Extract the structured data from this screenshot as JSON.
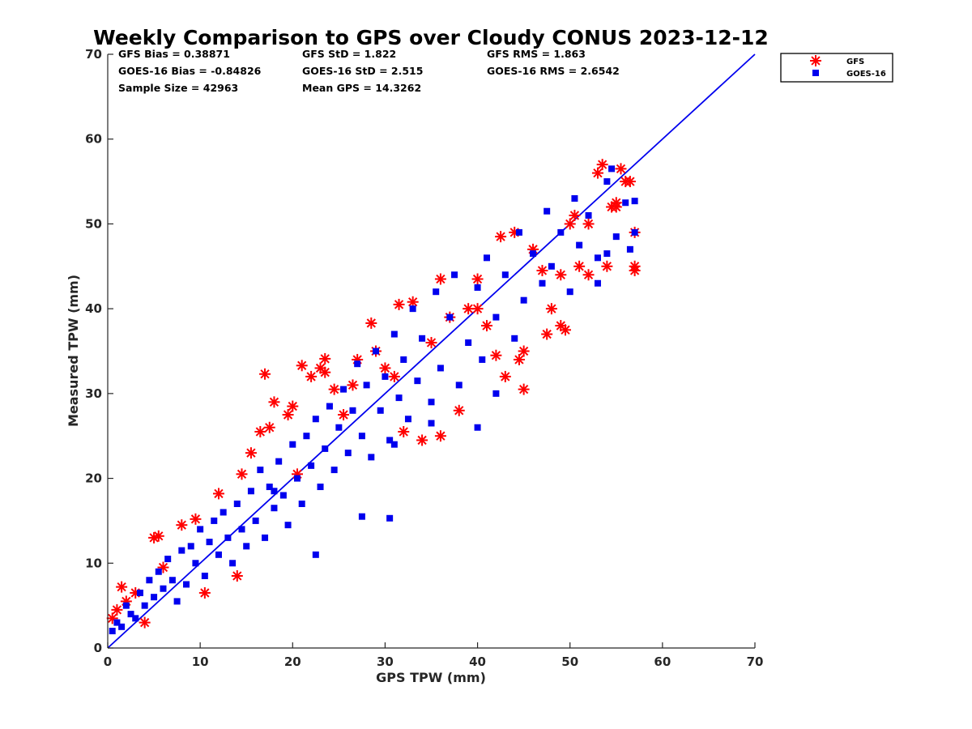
{
  "chart_data": {
    "type": "scatter",
    "title": "Weekly Comparison to GPS over Cloudy CONUS 2023-12-12",
    "xlabel": "GPS TPW (mm)",
    "ylabel": "Measured TPW (mm)",
    "xlim": [
      0,
      70
    ],
    "ylim": [
      0,
      70
    ],
    "xticks": [
      "0",
      "10",
      "20",
      "30",
      "40",
      "50",
      "60",
      "70"
    ],
    "yticks": [
      "0",
      "10",
      "20",
      "30",
      "40",
      "50",
      "60",
      "70"
    ],
    "grid": false,
    "legend_position": "outside top-right",
    "stats": [
      [
        "GFS Bias = 0.38871",
        "GFS StD = 1.822",
        "GFS RMS = 1.863"
      ],
      [
        "GOES-16 Bias = -0.84826",
        "GOES-16 StD = 2.515",
        "GOES-16 RMS = 2.6542"
      ],
      [
        "Sample Size = 42963",
        "Mean GPS = 14.3262",
        ""
      ]
    ],
    "reference_line": {
      "x": [
        0,
        70
      ],
      "y": [
        0,
        70
      ],
      "color": "#0000ee"
    },
    "series": [
      {
        "name": "GFS",
        "marker": "asterisk",
        "color": "#ff0000",
        "points": [
          [
            0.5,
            3.5
          ],
          [
            1,
            4.5
          ],
          [
            1.5,
            7.2
          ],
          [
            2,
            5.5
          ],
          [
            3,
            6.5
          ],
          [
            4,
            3.0
          ],
          [
            5,
            13.0
          ],
          [
            5.5,
            13.2
          ],
          [
            6,
            9.5
          ],
          [
            8,
            14.5
          ],
          [
            9.5,
            15.2
          ],
          [
            10.5,
            6.5
          ],
          [
            12,
            18.2
          ],
          [
            14,
            8.5
          ],
          [
            14.5,
            20.5
          ],
          [
            15.5,
            23.0
          ],
          [
            16.5,
            25.5
          ],
          [
            17,
            32.3
          ],
          [
            17.5,
            26.0
          ],
          [
            18,
            29.0
          ],
          [
            19.5,
            27.5
          ],
          [
            20,
            28.5
          ],
          [
            20.5,
            20.5
          ],
          [
            21,
            33.3
          ],
          [
            22,
            32.0
          ],
          [
            23,
            33.0
          ],
          [
            23.5,
            34.1
          ],
          [
            23.5,
            32.5
          ],
          [
            24.5,
            30.5
          ],
          [
            25.5,
            27.5
          ],
          [
            26.5,
            31.0
          ],
          [
            27,
            34.0
          ],
          [
            28.5,
            38.3
          ],
          [
            29,
            35.0
          ],
          [
            30,
            33.0
          ],
          [
            31,
            32.0
          ],
          [
            31.5,
            40.5
          ],
          [
            32,
            25.5
          ],
          [
            33,
            40.8
          ],
          [
            34,
            24.5
          ],
          [
            35,
            36.0
          ],
          [
            36,
            43.5
          ],
          [
            36,
            25.0
          ],
          [
            37,
            39.0
          ],
          [
            38,
            28.0
          ],
          [
            39,
            40.0
          ],
          [
            40,
            43.5
          ],
          [
            41,
            38.0
          ],
          [
            42,
            34.5
          ],
          [
            42.5,
            48.5
          ],
          [
            43,
            32.0
          ],
          [
            44,
            49.0
          ],
          [
            44.5,
            34.0
          ],
          [
            45,
            35.0
          ],
          [
            46,
            47.0
          ],
          [
            47,
            44.5
          ],
          [
            47.5,
            37.0
          ],
          [
            48,
            40.0
          ],
          [
            49,
            38.0
          ],
          [
            49.5,
            37.5
          ],
          [
            50,
            50.0
          ],
          [
            50.5,
            51.0
          ],
          [
            51,
            45.0
          ],
          [
            52,
            44.0
          ],
          [
            53,
            56.0
          ],
          [
            54,
            45.0
          ],
          [
            54.5,
            52.0
          ],
          [
            55,
            52.5
          ],
          [
            55.5,
            56.5
          ],
          [
            56,
            55.0
          ],
          [
            56.5,
            55.0
          ],
          [
            57,
            49.0
          ],
          [
            57,
            44.5
          ],
          [
            57,
            45.0
          ],
          [
            55,
            52.0
          ],
          [
            53.5,
            57.0
          ],
          [
            52,
            50.0
          ],
          [
            49,
            44.0
          ],
          [
            45,
            30.5
          ],
          [
            40,
            40.0
          ]
        ]
      },
      {
        "name": "GOES-16",
        "marker": "square",
        "color": "#0000ee",
        "points": [
          [
            0.5,
            2.0
          ],
          [
            1,
            3.0
          ],
          [
            1.5,
            2.5
          ],
          [
            2,
            5.0
          ],
          [
            2.5,
            4.0
          ],
          [
            3,
            3.5
          ],
          [
            3.5,
            6.5
          ],
          [
            4,
            5.0
          ],
          [
            4.5,
            8.0
          ],
          [
            5,
            6.0
          ],
          [
            5.5,
            9.0
          ],
          [
            6,
            7.0
          ],
          [
            6.5,
            10.5
          ],
          [
            7,
            8.0
          ],
          [
            7.5,
            5.5
          ],
          [
            8,
            11.5
          ],
          [
            8.5,
            7.5
          ],
          [
            9,
            12.0
          ],
          [
            9.5,
            10.0
          ],
          [
            10,
            14.0
          ],
          [
            10.5,
            8.5
          ],
          [
            11,
            12.5
          ],
          [
            11.5,
            15.0
          ],
          [
            12,
            11.0
          ],
          [
            12.5,
            16.0
          ],
          [
            13,
            13.0
          ],
          [
            13.5,
            10.0
          ],
          [
            14,
            17.0
          ],
          [
            14.5,
            14.0
          ],
          [
            15,
            12.0
          ],
          [
            15.5,
            18.5
          ],
          [
            16,
            15.0
          ],
          [
            16.5,
            21.0
          ],
          [
            17,
            13.0
          ],
          [
            17.5,
            19.0
          ],
          [
            18,
            16.5
          ],
          [
            18.5,
            22.0
          ],
          [
            19,
            18.0
          ],
          [
            19.5,
            14.5
          ],
          [
            20,
            24.0
          ],
          [
            20.5,
            20.0
          ],
          [
            21,
            17.0
          ],
          [
            21.5,
            25.0
          ],
          [
            22,
            21.5
          ],
          [
            22.5,
            27.0
          ],
          [
            23,
            19.0
          ],
          [
            23.5,
            23.5
          ],
          [
            24,
            28.5
          ],
          [
            24.5,
            21.0
          ],
          [
            25,
            26.0
          ],
          [
            25.5,
            30.5
          ],
          [
            26,
            23.0
          ],
          [
            26.5,
            28.0
          ],
          [
            27,
            33.5
          ],
          [
            27.5,
            25.0
          ],
          [
            28,
            31.0
          ],
          [
            28.5,
            22.5
          ],
          [
            29,
            35.0
          ],
          [
            29.5,
            28.0
          ],
          [
            30,
            32.0
          ],
          [
            30.5,
            24.5
          ],
          [
            31,
            37.0
          ],
          [
            31.5,
            29.5
          ],
          [
            32,
            34.0
          ],
          [
            32.5,
            27.0
          ],
          [
            33,
            40.0
          ],
          [
            33.5,
            31.5
          ],
          [
            34,
            36.5
          ],
          [
            35,
            29.0
          ],
          [
            35.5,
            42.0
          ],
          [
            36,
            33.0
          ],
          [
            37,
            39.0
          ],
          [
            37.5,
            44.0
          ],
          [
            38,
            31.0
          ],
          [
            39,
            36.0
          ],
          [
            40,
            42.5
          ],
          [
            40.5,
            34.0
          ],
          [
            41,
            46.0
          ],
          [
            42,
            39.0
          ],
          [
            43,
            44.0
          ],
          [
            44,
            36.5
          ],
          [
            44.5,
            49.0
          ],
          [
            45,
            41.0
          ],
          [
            46,
            46.5
          ],
          [
            47,
            43.0
          ],
          [
            47.5,
            51.5
          ],
          [
            48,
            45.0
          ],
          [
            49,
            49.0
          ],
          [
            50,
            42.0
          ],
          [
            50.5,
            53.0
          ],
          [
            51,
            47.5
          ],
          [
            52,
            51.0
          ],
          [
            53,
            46.0
          ],
          [
            54,
            55.0
          ],
          [
            55,
            48.5
          ],
          [
            56,
            52.5
          ],
          [
            56.5,
            47.0
          ],
          [
            57,
            52.7
          ],
          [
            57,
            49.0
          ],
          [
            54.5,
            56.5
          ],
          [
            54,
            46.5
          ],
          [
            53,
            43.0
          ],
          [
            42,
            30.0
          ],
          [
            40,
            26.0
          ],
          [
            35,
            26.5
          ],
          [
            31,
            24.0
          ],
          [
            30.5,
            15.3
          ],
          [
            27.5,
            15.5
          ],
          [
            22.5,
            11.0
          ],
          [
            18,
            18.5
          ]
        ]
      }
    ]
  }
}
